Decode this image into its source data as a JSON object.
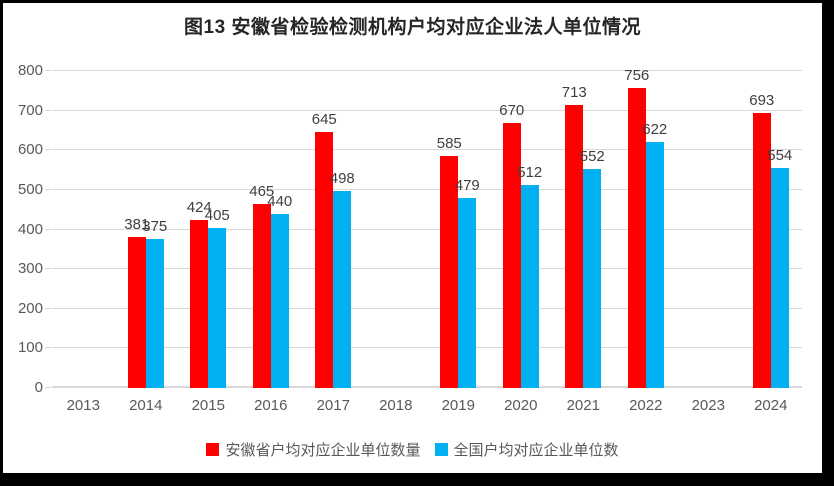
{
  "chart_data": {
    "type": "bar",
    "title": "图13  安徽省检验检测机构户均对应企业法人单位情况",
    "categories": [
      "2013",
      "2014",
      "2015",
      "2016",
      "2017",
      "2018",
      "2019",
      "2020",
      "2021",
      "2022",
      "2023",
      "2024"
    ],
    "series": [
      {
        "name": "安徽省户均对应企业单位数量",
        "color": "#FF0000",
        "values": [
          null,
          381,
          424,
          465,
          645,
          null,
          585,
          670,
          713,
          756,
          null,
          693
        ]
      },
      {
        "name": "全国户均对应企业单位数",
        "color": "#00B0F0",
        "values": [
          null,
          375,
          405,
          440,
          498,
          null,
          479,
          512,
          552,
          622,
          null,
          554
        ]
      }
    ],
    "ylim": [
      0,
      800
    ],
    "ytick_step": 100,
    "grid": true,
    "legend_position": "bottom",
    "colors": {
      "series_anhui": "#FF0000",
      "series_national": "#00B0F0",
      "gridline": "#D9D9D9",
      "axis_text": "#595959",
      "data_label": "#404040",
      "title_text": "#262626",
      "frame": "#000000"
    }
  }
}
